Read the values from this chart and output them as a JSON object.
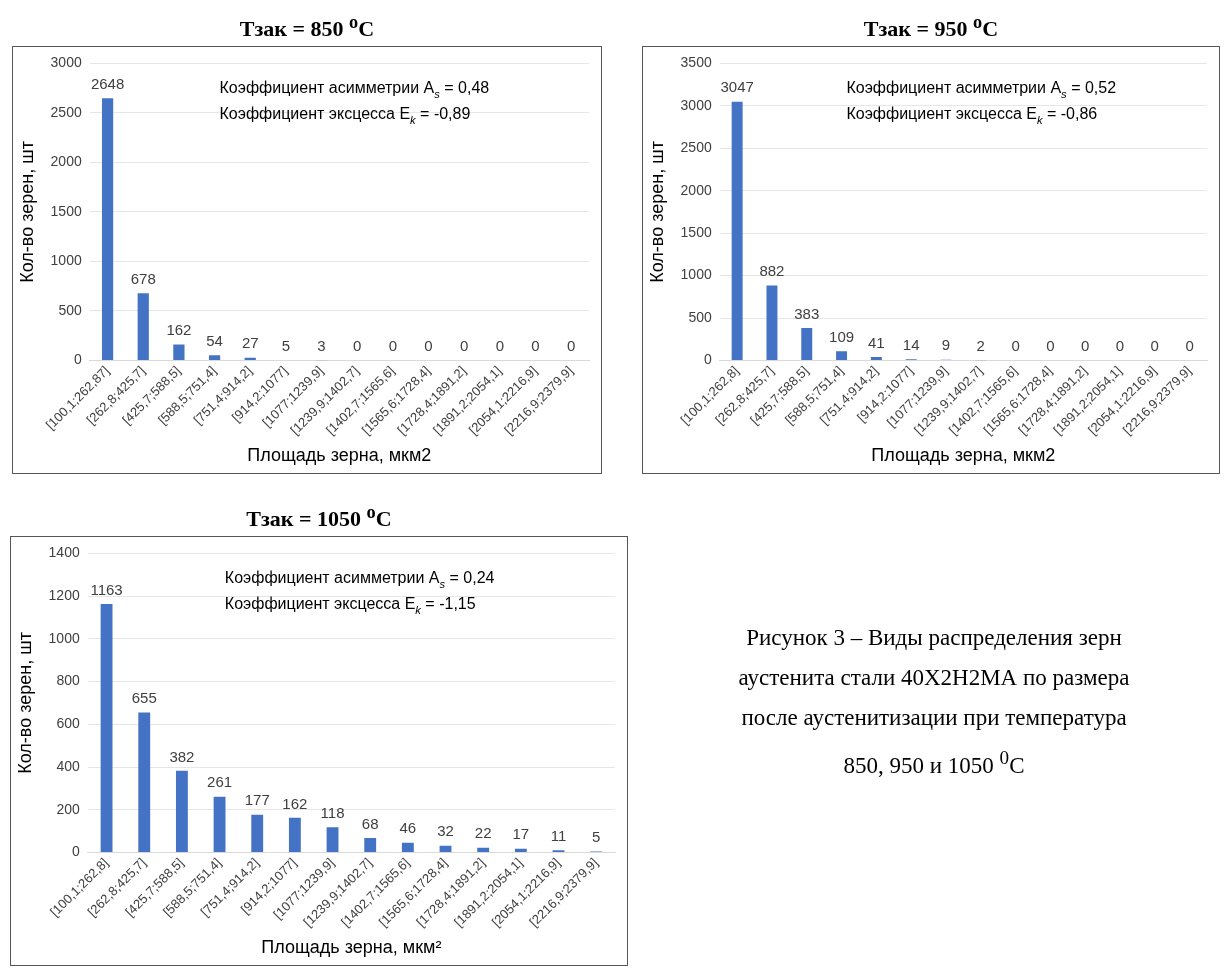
{
  "chart_data": [
    {
      "type": "bar",
      "title": "Тзак = 850 $^{o}$C",
      "xlabel": "Площадь зерна, мкм2",
      "ylabel": "Кол-во зерен, шт",
      "categories": [
        "[100,1;262,87]",
        "[262,8;425,7]",
        "[425,7;588,5]",
        "[588,5;751,4]",
        "[751,4;914,2]",
        "[914,2;1077]",
        "[1077;1239,9]",
        "[1239,9;1402,7]",
        "[1402,7;1565,6]",
        "[1565,6;1728,4]",
        "[1728,4;1891,2]",
        "[1891,2;2054,1]",
        "[2054,1;2216,9]",
        "[2216,9;2379,9]"
      ],
      "values": [
        2648,
        678,
        162,
        54,
        27,
        5,
        3,
        0,
        0,
        0,
        0,
        0,
        0,
        0
      ],
      "color": "#4472c4",
      "ylim": [
        0,
        3000
      ],
      "yticks": [
        0,
        500,
        1000,
        1500,
        2000,
        2500,
        3000
      ],
      "grid": "y",
      "data_labels": true,
      "annotations": [
        "Коэффициент асимметрии A$_{s}$ = 0,48",
        "Коэффициент эксцесса E$_{k}$ = -0,89"
      ]
    },
    {
      "type": "bar",
      "title": "Тзак = 950 $^{o}$C",
      "xlabel": "Площадь зерна, мкм2",
      "ylabel": "Кол-во зерен, шт",
      "categories": [
        "[100,1;262,8]",
        "[262,8;425,7]",
        "[425,7;588,5]",
        "[588,5;751,4]",
        "[751,4;914,2]",
        "[914,2;1077]",
        "[1077;1239,9]",
        "[1239,9;1402,7]",
        "[1402,7;1565,6]",
        "[1565,6;1728,4]",
        "[1728,4;1891,2]",
        "[1891,2;2054,1]",
        "[2054,1;2216,9]",
        "[2216,9;2379,9]"
      ],
      "values": [
        3047,
        882,
        383,
        109,
        41,
        14,
        9,
        2,
        0,
        0,
        0,
        0,
        0,
        0
      ],
      "color": "#4472c4",
      "ylim": [
        0,
        3500
      ],
      "yticks": [
        0,
        500,
        1000,
        1500,
        2000,
        2500,
        3000,
        3500
      ],
      "grid": "y",
      "data_labels": true,
      "annotations": [
        "Коэффициент асимметрии A$_{s}$ = 0,52",
        "Коэффициент эксцесса E$_{k}$ = -0,86"
      ]
    },
    {
      "type": "bar",
      "title": "Тзак = 1050 $^{o}$C",
      "xlabel": "Площадь зерна, мкм²",
      "ylabel": "Кол-во зерен, шт",
      "categories": [
        "[100,1;262,8]",
        "[262,8;425,7]",
        "[425,7;588,5]",
        "[588,5;751,4]",
        "[751,4;914,2]",
        "[914,2;1077]",
        "[1077;1239,9]",
        "[1239,9;1402,7]",
        "[1402,7;1565,6]",
        "[1565,6;1728,4]",
        "[1728,4;1891,2]",
        "[1891,2;2054,1]",
        "[2054,1;2216,9]",
        "[2216,9;2379,9]"
      ],
      "values": [
        1163,
        655,
        382,
        261,
        177,
        162,
        118,
        68,
        46,
        32,
        22,
        17,
        11,
        5
      ],
      "color": "#4472c4",
      "ylim": [
        0,
        1400
      ],
      "yticks": [
        0,
        200,
        400,
        600,
        800,
        1000,
        1200,
        1400
      ],
      "grid": "y",
      "data_labels": true,
      "annotations": [
        "Коэффициент асимметрии A$_{s}$ = 0,24",
        "Коэффициент эксцесса E$_{k}$ = -1,15"
      ]
    },
    {
      "type": "other",
      "annotations": [
        "Рисунок 3 – Виды распределения зерн",
        "аустенита стали 40Х2Н2МА по размера",
        "после аустенитизации при температура",
        "850, 950 и 1050 $^{0}$С"
      ]
    }
  ]
}
